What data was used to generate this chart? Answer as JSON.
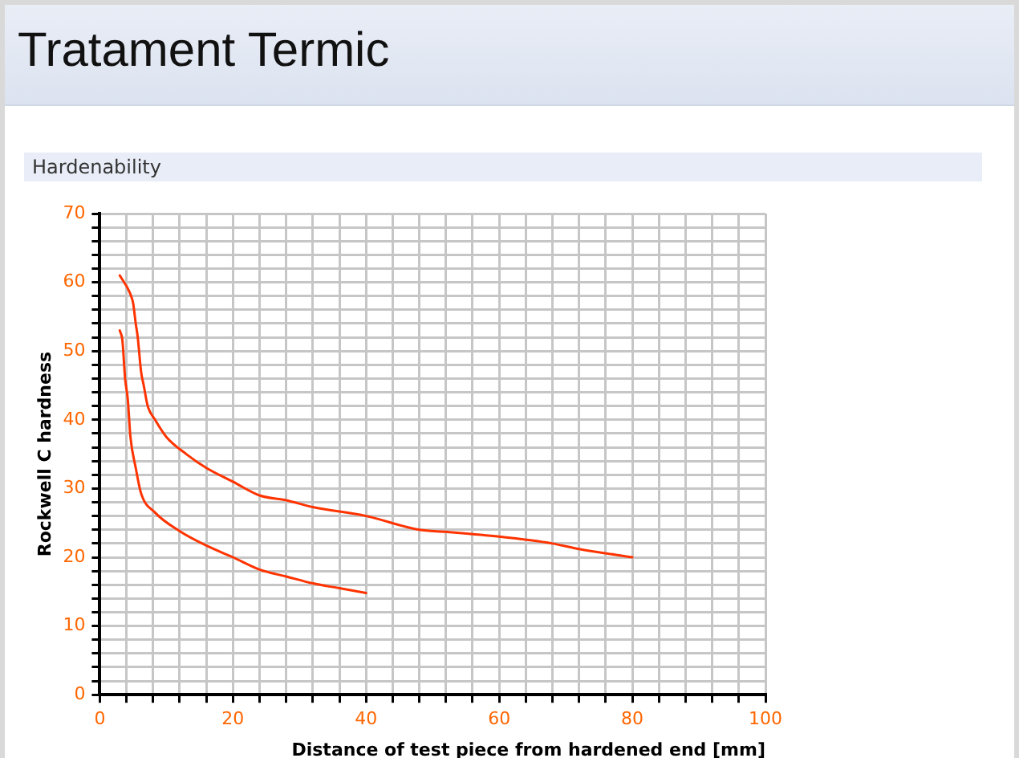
{
  "chart_data": {
    "type": "line",
    "title": "Tratament Termic",
    "subtitle": "Hardenability",
    "xlabel": "Distance of test piece from hardened end [mm]",
    "ylabel": "Rockwell C hardness",
    "xlim": [
      0,
      100
    ],
    "ylim": [
      0,
      70
    ],
    "xticks": [
      0,
      {
        "value": 4,
        "label": null
      },
      {
        "value": 8,
        "label": null
      },
      {
        "value": 12,
        "label": null
      },
      {
        "value": 16,
        "label": null
      },
      20,
      {
        "value": 24,
        "label": null
      },
      {
        "value": 28,
        "label": null
      },
      {
        "value": 32,
        "label": null
      },
      {
        "value": 36,
        "label": null
      },
      40,
      {
        "value": 44,
        "label": null
      },
      {
        "value": 48,
        "label": null
      },
      {
        "value": 52,
        "label": null
      },
      {
        "value": 56,
        "label": null
      },
      60,
      {
        "value": 64,
        "label": null
      },
      {
        "value": 68,
        "label": null
      },
      {
        "value": 72,
        "label": null
      },
      {
        "value": 76,
        "label": null
      },
      80,
      {
        "value": 84,
        "label": null
      },
      {
        "value": 88,
        "label": null
      },
      {
        "value": 92,
        "label": null
      },
      {
        "value": 96,
        "label": null
      },
      100
    ],
    "yticks": [
      0,
      {
        "value": 2,
        "label": null
      },
      {
        "value": 4,
        "label": null
      },
      {
        "value": 6,
        "label": null
      },
      {
        "value": 8,
        "label": null
      },
      10,
      {
        "value": 12,
        "label": null
      },
      {
        "value": 14,
        "label": null
      },
      {
        "value": 16,
        "label": null
      },
      {
        "value": 18,
        "label": null
      },
      20,
      {
        "value": 22,
        "label": null
      },
      {
        "value": 24,
        "label": null
      },
      {
        "value": 26,
        "label": null
      },
      {
        "value": 28,
        "label": null
      },
      30,
      {
        "value": 32,
        "label": null
      },
      {
        "value": 34,
        "label": null
      },
      {
        "value": 36,
        "label": null
      },
      {
        "value": 38,
        "label": null
      },
      40,
      {
        "value": 42,
        "label": null
      },
      {
        "value": 44,
        "label": null
      },
      {
        "value": 46,
        "label": null
      },
      {
        "value": 48,
        "label": null
      },
      50,
      {
        "value": 52,
        "label": null
      },
      {
        "value": 54,
        "label": null
      },
      {
        "value": 56,
        "label": null
      },
      {
        "value": 58,
        "label": null
      },
      60,
      {
        "value": 62,
        "label": null
      },
      {
        "value": 64,
        "label": null
      },
      {
        "value": 66,
        "label": null
      },
      {
        "value": 68,
        "label": null
      },
      70
    ],
    "grid": true,
    "legend": false,
    "marker": "none",
    "line_style": "solid",
    "series": [
      {
        "color": "#ff3300",
        "x": [
          3,
          4.5,
          5,
          5.4,
          5.7,
          6.2,
          6.6,
          7.2,
          8.3,
          10,
          13,
          16,
          20,
          24,
          28,
          32,
          40,
          48,
          52,
          60,
          68,
          72,
          80
        ],
        "values": [
          61,
          58.5,
          57,
          54,
          52,
          47,
          45,
          42,
          40,
          37.5,
          35,
          33,
          31,
          29,
          28.3,
          27.3,
          26,
          24,
          23.7,
          23,
          22,
          21.2,
          20
        ]
      },
      {
        "color": "#ff3300",
        "x": [
          3,
          3.4,
          3.8,
          4.2,
          4.6,
          5.4,
          6.2,
          8.3,
          12,
          16,
          20,
          24,
          28,
          32,
          36,
          40
        ],
        "values": [
          53,
          51.5,
          46,
          43,
          37.5,
          33,
          29.3,
          26.5,
          23.8,
          21.7,
          20,
          18.2,
          17.2,
          16.2,
          15.5,
          14.8
        ]
      }
    ]
  }
}
